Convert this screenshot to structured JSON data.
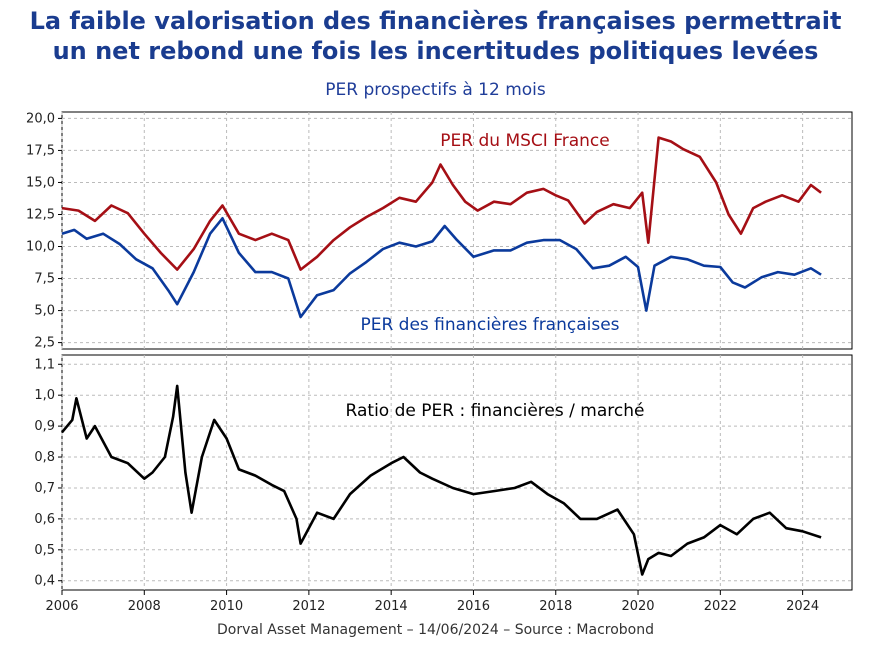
{
  "title": {
    "line1": "La faible valorisation des financières françaises permettrait",
    "line2": "un net rebond une fois les incertitudes politiques levées"
  },
  "subtitle": "PER prospectifs à 12 mois",
  "footer": "Dorval Asset Management – 14/06/2024 –   Source : Macrobond",
  "colors": {
    "msci": "#a50f15",
    "financials": "#0b3a9c",
    "ratio": "#000000",
    "title": "#1a3c8f"
  },
  "chart_data": [
    {
      "type": "line",
      "panel": "top",
      "x_ticks": [
        "2006",
        "2008",
        "2010",
        "2012",
        "2014",
        "2016",
        "2018",
        "2020",
        "2022",
        "2024"
      ],
      "y_ticks": [
        "2,5",
        "5,0",
        "7,5",
        "10,0",
        "12,5",
        "15,0",
        "17,5",
        "20,0"
      ],
      "xlim": [
        2006.0,
        2025.2
      ],
      "ylim": [
        2.0,
        20.5
      ],
      "grid": true,
      "annotations": [
        "PER du MSCI France",
        "PER des financières françaises"
      ],
      "series": [
        {
          "name": "PER du MSCI France",
          "color": "#a50f15",
          "x": [
            2006.0,
            2006.4,
            2006.8,
            2007.2,
            2007.6,
            2008.0,
            2008.4,
            2008.8,
            2009.2,
            2009.6,
            2009.9,
            2010.3,
            2010.7,
            2011.1,
            2011.5,
            2011.8,
            2012.2,
            2012.6,
            2013.0,
            2013.4,
            2013.8,
            2014.2,
            2014.6,
            2015.0,
            2015.2,
            2015.5,
            2015.8,
            2016.1,
            2016.5,
            2016.9,
            2017.3,
            2017.7,
            2018.0,
            2018.3,
            2018.7,
            2019.0,
            2019.4,
            2019.8,
            2020.1,
            2020.25,
            2020.5,
            2020.8,
            2021.1,
            2021.5,
            2021.9,
            2022.2,
            2022.5,
            2022.8,
            2023.1,
            2023.5,
            2023.9,
            2024.2,
            2024.45
          ],
          "values": [
            13.0,
            12.8,
            12.0,
            13.2,
            12.6,
            11.0,
            9.5,
            8.2,
            9.8,
            12.0,
            13.2,
            11.0,
            10.5,
            11.0,
            10.5,
            8.2,
            9.2,
            10.5,
            11.5,
            12.3,
            13.0,
            13.8,
            13.5,
            15.0,
            16.4,
            14.8,
            13.5,
            12.8,
            13.5,
            13.3,
            14.2,
            14.5,
            14.0,
            13.6,
            11.8,
            12.7,
            13.3,
            13.0,
            14.2,
            10.3,
            18.5,
            18.2,
            17.6,
            17.0,
            15.0,
            12.5,
            11.0,
            13.0,
            13.5,
            14.0,
            13.5,
            14.8,
            14.2
          ]
        },
        {
          "name": "PER des financières françaises",
          "color": "#0b3a9c",
          "x": [
            2006.0,
            2006.3,
            2006.6,
            2007.0,
            2007.4,
            2007.8,
            2008.2,
            2008.6,
            2008.8,
            2009.2,
            2009.6,
            2009.9,
            2010.3,
            2010.7,
            2011.1,
            2011.5,
            2011.8,
            2012.2,
            2012.6,
            2013.0,
            2013.4,
            2013.8,
            2014.2,
            2014.6,
            2015.0,
            2015.3,
            2015.6,
            2016.0,
            2016.5,
            2016.9,
            2017.3,
            2017.7,
            2018.1,
            2018.5,
            2018.9,
            2019.3,
            2019.7,
            2020.0,
            2020.2,
            2020.4,
            2020.8,
            2021.2,
            2021.6,
            2022.0,
            2022.3,
            2022.6,
            2023.0,
            2023.4,
            2023.8,
            2024.2,
            2024.45
          ],
          "values": [
            11.0,
            11.3,
            10.6,
            11.0,
            10.2,
            9.0,
            8.3,
            6.5,
            5.5,
            8.0,
            11.0,
            12.2,
            9.5,
            8.0,
            8.0,
            7.5,
            4.5,
            6.2,
            6.6,
            7.9,
            8.8,
            9.8,
            10.3,
            10.0,
            10.4,
            11.6,
            10.5,
            9.2,
            9.7,
            9.7,
            10.3,
            10.5,
            10.5,
            9.8,
            8.3,
            8.5,
            9.2,
            8.4,
            5.0,
            8.5,
            9.2,
            9.0,
            8.5,
            8.4,
            7.2,
            6.8,
            7.6,
            8.0,
            7.8,
            8.3,
            7.8
          ]
        }
      ]
    },
    {
      "type": "line",
      "panel": "bottom",
      "x_ticks": [
        "2006",
        "2008",
        "2010",
        "2012",
        "2014",
        "2016",
        "2018",
        "2020",
        "2022",
        "2024"
      ],
      "y_ticks": [
        "0,4",
        "0,5",
        "0,6",
        "0,7",
        "0,8",
        "0,9",
        "1,0",
        "1,1"
      ],
      "xlim": [
        2006.0,
        2025.2
      ],
      "ylim": [
        0.37,
        1.13
      ],
      "grid": true,
      "annotations": [
        "Ratio de PER : financières / marché"
      ],
      "series": [
        {
          "name": "Ratio de PER : financières / marché",
          "color": "#000000",
          "x": [
            2006.0,
            2006.25,
            2006.35,
            2006.6,
            2006.8,
            2007.2,
            2007.6,
            2008.0,
            2008.2,
            2008.5,
            2008.7,
            2008.8,
            2009.0,
            2009.15,
            2009.4,
            2009.7,
            2010.0,
            2010.3,
            2010.7,
            2011.1,
            2011.4,
            2011.7,
            2011.8,
            2012.2,
            2012.6,
            2013.0,
            2013.5,
            2014.0,
            2014.3,
            2014.7,
            2015.0,
            2015.5,
            2016.0,
            2016.5,
            2017.0,
            2017.4,
            2017.8,
            2018.2,
            2018.6,
            2019.0,
            2019.5,
            2019.9,
            2020.1,
            2020.25,
            2020.5,
            2020.8,
            2021.2,
            2021.6,
            2022.0,
            2022.4,
            2022.8,
            2023.2,
            2023.6,
            2024.0,
            2024.45
          ],
          "values": [
            0.88,
            0.92,
            0.99,
            0.86,
            0.9,
            0.8,
            0.78,
            0.73,
            0.75,
            0.8,
            0.93,
            1.03,
            0.75,
            0.62,
            0.8,
            0.92,
            0.86,
            0.76,
            0.74,
            0.71,
            0.69,
            0.6,
            0.52,
            0.62,
            0.6,
            0.68,
            0.74,
            0.78,
            0.8,
            0.75,
            0.73,
            0.7,
            0.68,
            0.69,
            0.7,
            0.72,
            0.68,
            0.65,
            0.6,
            0.6,
            0.63,
            0.55,
            0.42,
            0.47,
            0.49,
            0.48,
            0.52,
            0.54,
            0.58,
            0.55,
            0.6,
            0.62,
            0.57,
            0.56,
            0.54
          ]
        }
      ]
    }
  ]
}
